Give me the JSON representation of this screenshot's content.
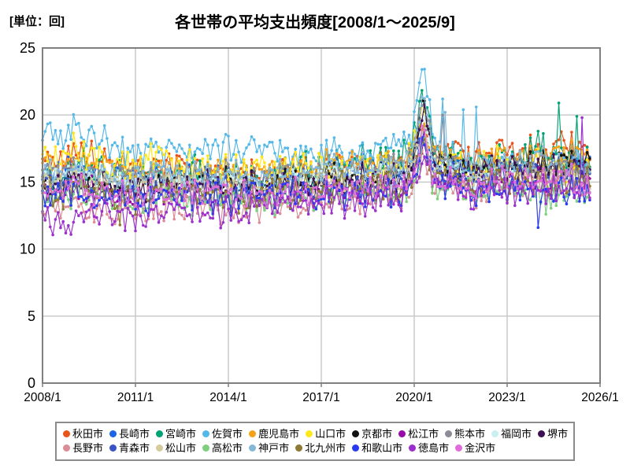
{
  "header": {
    "unit_label": "[単位：回]",
    "title": "各世帯の平均支出頻度[2008/1～2025/9]"
  },
  "chart_data": {
    "type": "line",
    "title": "各世帯の平均支出頻度[2008/1～2025/9]",
    "ylabel": "[単位：回]",
    "xlabel": "",
    "grid": true,
    "legend_position": "bottom",
    "x_axis": {
      "ticks": [
        "2008/1",
        "2011/1",
        "2014/1",
        "2017/1",
        "2020/1",
        "2023/1",
        "2026/1"
      ],
      "range_years": [
        2008,
        2026
      ],
      "gridline_years": [
        2011,
        2014,
        2017,
        2020,
        2023
      ]
    },
    "y_axis": {
      "min": 0,
      "max": 25,
      "ticks": [
        0,
        5,
        10,
        15,
        20,
        25
      ]
    },
    "data_period": {
      "start": "2008/1",
      "end": "2025/9",
      "frequency": "monthly",
      "points_per_series": 213
    },
    "anchor_years": [
      2008,
      2009,
      2010,
      2011,
      2012,
      2013,
      2014,
      2015,
      2016,
      2017,
      2018,
      2019,
      2020,
      2021,
      2022,
      2023,
      2024,
      2025
    ],
    "legend_rows": [
      11,
      9
    ],
    "series": [
      {
        "name": "秋田市",
        "color": "#E8541A",
        "seed": 1,
        "jitter": 1.0,
        "covid_peak": 19.0,
        "anchors": [
          16.6,
          17.2,
          16.4,
          16.1,
          16.3,
          16.0,
          15.8,
          15.6,
          15.9,
          16.2,
          16.4,
          16.3,
          17.0,
          17.2,
          16.8,
          17.3,
          17.5,
          17.8
        ],
        "outliers": []
      },
      {
        "name": "長崎市",
        "color": "#1C63E7",
        "seed": 2,
        "jitter": 0.9,
        "covid_peak": 18.4,
        "anchors": [
          15.8,
          16.0,
          15.6,
          15.4,
          15.7,
          15.5,
          15.6,
          15.3,
          15.5,
          15.8,
          16.0,
          15.9,
          16.4,
          16.4,
          16.0,
          16.2,
          16.3,
          16.6
        ],
        "outliers": []
      },
      {
        "name": "宮崎市",
        "color": "#00A273",
        "seed": 3,
        "jitter": 1.2,
        "covid_peak": 21.0,
        "anchors": [
          15.6,
          16.2,
          15.8,
          15.5,
          15.8,
          16.0,
          15.6,
          15.4,
          15.7,
          15.9,
          16.2,
          16.5,
          17.2,
          16.8,
          16.4,
          16.7,
          17.3,
          17.2
        ],
        "outliers": [
          {
            "t": "2024/9",
            "v": 20.9
          },
          {
            "t": "2025/4",
            "v": 19.9
          }
        ]
      },
      {
        "name": "佐賀市",
        "color": "#54B8E8",
        "seed": 4,
        "jitter": 1.0,
        "covid_peak": 23.2,
        "anchors": [
          18.7,
          18.8,
          18.0,
          17.3,
          17.1,
          17.4,
          17.6,
          17.2,
          16.9,
          17.1,
          17.3,
          17.5,
          17.9,
          17.1,
          16.3,
          16.1,
          16.2,
          16.4
        ],
        "outliers": [
          {
            "t": "2020/12",
            "v": 21.2
          },
          {
            "t": "2021/8",
            "v": 20.4
          },
          {
            "t": "2022/1",
            "v": 20.6
          }
        ]
      },
      {
        "name": "鹿児島市",
        "color": "#F5A21B",
        "seed": 5,
        "jitter": 1.0,
        "covid_peak": 19.2,
        "anchors": [
          16.3,
          16.6,
          16.1,
          15.8,
          16.0,
          15.7,
          15.9,
          15.7,
          15.9,
          16.1,
          16.3,
          16.2,
          16.6,
          16.8,
          16.4,
          16.6,
          16.8,
          17.0
        ],
        "outliers": []
      },
      {
        "name": "山口市",
        "color": "#FFE81A",
        "seed": 6,
        "jitter": 1.2,
        "covid_peak": 20.2,
        "anchors": [
          16.9,
          17.3,
          16.6,
          16.2,
          16.6,
          16.4,
          16.1,
          15.9,
          16.1,
          16.2,
          16.1,
          16.3,
          16.6,
          16.4,
          16.1,
          16.2,
          16.1,
          16.2
        ],
        "outliers": []
      },
      {
        "name": "京都市",
        "color": "#111111",
        "seed": 7,
        "jitter": 0.9,
        "covid_peak": 20.3,
        "anchors": [
          15.1,
          15.3,
          15.0,
          14.8,
          15.0,
          14.9,
          15.1,
          14.9,
          15.1,
          15.3,
          15.5,
          15.4,
          16.1,
          16.3,
          15.9,
          16.1,
          16.3,
          16.4
        ],
        "outliers": []
      },
      {
        "name": "松江市",
        "color": "#970CA8",
        "seed": 8,
        "jitter": 1.0,
        "covid_peak": 17.8,
        "anchors": [
          14.3,
          14.6,
          14.1,
          13.9,
          14.1,
          14.3,
          14.1,
          13.9,
          14.1,
          14.4,
          14.6,
          14.5,
          15.1,
          15.3,
          14.9,
          15.1,
          15.3,
          15.4
        ],
        "outliers": []
      },
      {
        "name": "熊本市",
        "color": "#8C8C96",
        "seed": 9,
        "jitter": 0.9,
        "covid_peak": 21.2,
        "anchors": [
          15.6,
          15.9,
          15.5,
          15.3,
          15.6,
          15.4,
          15.6,
          15.3,
          15.5,
          15.7,
          15.9,
          16.1,
          16.6,
          16.3,
          15.9,
          16.1,
          16.2,
          16.2
        ],
        "outliers": [
          {
            "t": "2020/12",
            "v": 20.0
          }
        ]
      },
      {
        "name": "福岡市",
        "color": "#C9EFF1",
        "seed": 10,
        "jitter": 0.9,
        "covid_peak": 19.4,
        "anchors": [
          15.3,
          15.5,
          15.1,
          14.9,
          15.1,
          15.0,
          15.2,
          14.9,
          15.1,
          15.3,
          15.5,
          15.4,
          15.9,
          15.7,
          15.3,
          15.1,
          14.9,
          15.0
        ],
        "outliers": []
      },
      {
        "name": "堺市",
        "color": "#3C1053",
        "seed": 11,
        "jitter": 1.0,
        "covid_peak": 19.8,
        "anchors": [
          14.9,
          15.1,
          14.7,
          14.5,
          14.7,
          14.9,
          14.7,
          14.5,
          14.7,
          14.9,
          15.1,
          15.3,
          15.9,
          16.1,
          15.7,
          15.9,
          16.1,
          16.3
        ],
        "outliers": []
      },
      {
        "name": "長野市",
        "color": "#DC8C96",
        "seed": 12,
        "jitter": 0.9,
        "covid_peak": 16.6,
        "anchors": [
          13.3,
          13.1,
          12.9,
          12.7,
          13.0,
          13.1,
          12.9,
          12.8,
          13.1,
          13.3,
          13.5,
          13.6,
          14.3,
          14.5,
          14.1,
          14.3,
          14.5,
          14.6
        ],
        "outliers": []
      },
      {
        "name": "青森市",
        "color": "#3A52C8",
        "seed": 13,
        "jitter": 1.0,
        "covid_peak": 18.2,
        "anchors": [
          14.6,
          14.9,
          14.4,
          14.1,
          14.3,
          14.5,
          14.3,
          14.1,
          14.3,
          14.6,
          14.8,
          14.7,
          15.3,
          15.5,
          15.1,
          15.3,
          15.5,
          15.6
        ],
        "outliers": []
      },
      {
        "name": "松山市",
        "color": "#D3CB9E",
        "seed": 14,
        "jitter": 0.9,
        "covid_peak": 18.6,
        "anchors": [
          14.9,
          15.1,
          14.7,
          14.6,
          14.8,
          14.6,
          14.8,
          14.5,
          14.7,
          14.9,
          15.1,
          15.1,
          15.6,
          15.4,
          15.1,
          15.3,
          15.4,
          15.5
        ],
        "outliers": []
      },
      {
        "name": "高松市",
        "color": "#7ED07E",
        "seed": 15,
        "jitter": 1.0,
        "covid_peak": 17.2,
        "anchors": [
          13.9,
          14.1,
          13.7,
          13.5,
          13.8,
          13.6,
          13.7,
          13.5,
          13.7,
          13.9,
          14.1,
          14.1,
          14.6,
          14.4,
          14.1,
          14.3,
          13.9,
          14.1
        ],
        "outliers": [
          {
            "t": "2024/4",
            "v": 12.6
          }
        ]
      },
      {
        "name": "神戸市",
        "color": "#85B8D8",
        "seed": 16,
        "jitter": 0.9,
        "covid_peak": 20.8,
        "anchors": [
          15.9,
          16.1,
          15.7,
          15.5,
          15.7,
          15.6,
          15.8,
          15.5,
          15.7,
          15.9,
          16.1,
          16.3,
          16.9,
          16.6,
          16.1,
          16.3,
          16.5,
          16.6
        ],
        "outliers": [
          {
            "t": "2021/1",
            "v": 20.2
          }
        ]
      },
      {
        "name": "北九州市",
        "color": "#8C7A32",
        "seed": 17,
        "jitter": 1.1,
        "covid_peak": 18.0,
        "anchors": [
          14.6,
          14.3,
          14.1,
          13.9,
          14.1,
          14.3,
          14.1,
          14.0,
          14.2,
          14.5,
          14.7,
          14.6,
          15.1,
          15.3,
          14.9,
          15.1,
          15.2,
          15.3
        ],
        "outliers": [
          {
            "t": "2010/7",
            "v": 11.8
          }
        ]
      },
      {
        "name": "和歌山市",
        "color": "#2A3BEF",
        "seed": 18,
        "jitter": 1.1,
        "covid_peak": 17.4,
        "anchors": [
          14.1,
          14.3,
          13.9,
          13.7,
          13.9,
          14.1,
          13.9,
          13.7,
          13.9,
          14.1,
          14.3,
          14.3,
          14.9,
          14.7,
          14.3,
          14.5,
          14.1,
          14.4
        ],
        "outliers": [
          {
            "t": "2024/1",
            "v": 11.6
          }
        ]
      },
      {
        "name": "徳島市",
        "color": "#9B30CC",
        "seed": 19,
        "jitter": 1.0,
        "covid_peak": 17.0,
        "anchors": [
          12.3,
          12.1,
          12.5,
          12.3,
          12.6,
          12.9,
          12.7,
          12.9,
          13.1,
          13.4,
          13.6,
          13.7,
          14.3,
          14.5,
          14.1,
          14.3,
          14.5,
          14.6
        ],
        "outliers": [
          {
            "t": "2008/10",
            "v": 11.2
          },
          {
            "t": "2025/6",
            "v": 19.8
          }
        ]
      },
      {
        "name": "金沢市",
        "color": "#E06CD9",
        "seed": 20,
        "jitter": 1.0,
        "covid_peak": 18.4,
        "anchors": [
          14.3,
          14.5,
          14.1,
          14.0,
          14.2,
          14.1,
          14.3,
          14.0,
          14.2,
          14.4,
          14.6,
          14.6,
          15.1,
          15.3,
          14.9,
          15.1,
          15.2,
          15.3
        ],
        "outliers": []
      }
    ],
    "style_colors": {
      "gridline": "#C6C6C6",
      "plot_border": "#7F7F7F",
      "text": "#000000",
      "legend_border": "#8C8C8C"
    }
  }
}
